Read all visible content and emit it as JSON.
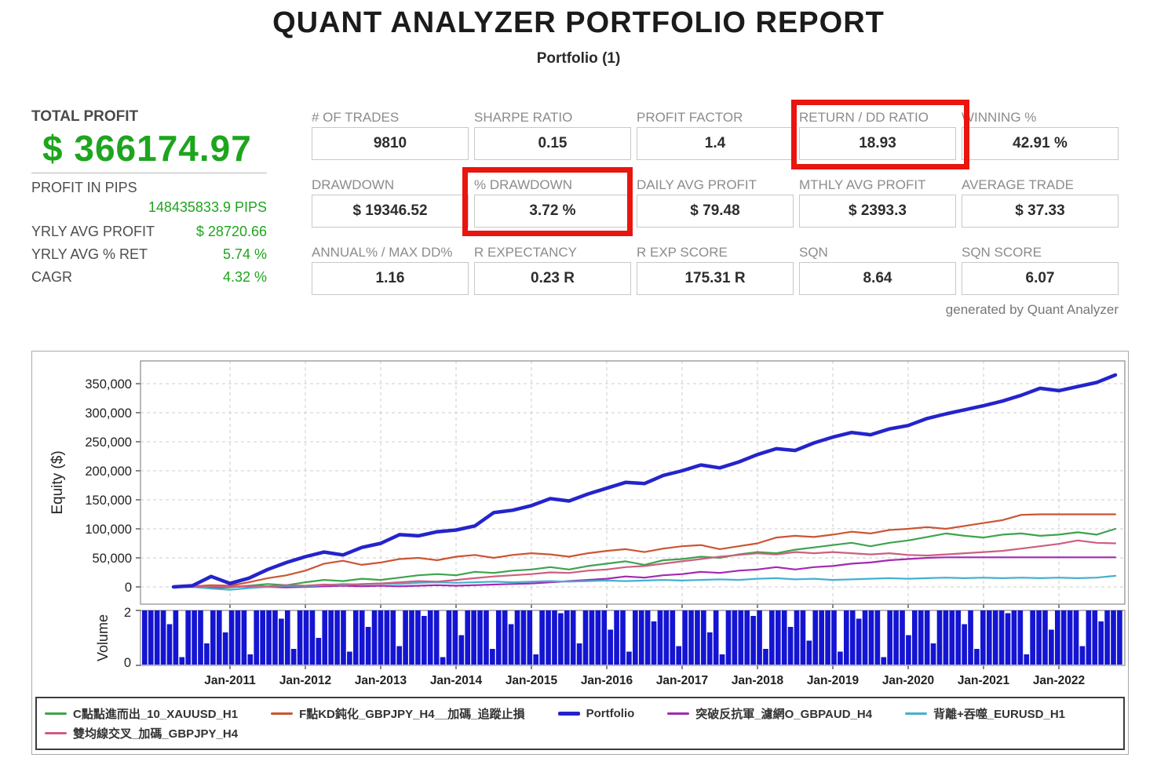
{
  "header": {
    "title": "QUANT ANALYZER PORTFOLIO REPORT",
    "subtitle": "Portfolio (1)"
  },
  "summary": {
    "total_profit_label": "TOTAL PROFIT",
    "total_profit_value": "$ 366174.97",
    "profit_in_pips_label": "PROFIT IN PIPS",
    "profit_in_pips_value": "148435833.9 PIPS",
    "rows": [
      {
        "label": "YRLY AVG PROFIT",
        "value": "$ 28720.66"
      },
      {
        "label": "YRLY AVG % RET",
        "value": "5.74 %"
      },
      {
        "label": "CAGR",
        "value": "4.32 %"
      }
    ]
  },
  "stats": {
    "rows": [
      [
        {
          "label": "# OF TRADES",
          "value": "9810"
        },
        {
          "label": "SHARPE RATIO",
          "value": "0.15"
        },
        {
          "label": "PROFIT FACTOR",
          "value": "1.4"
        },
        {
          "label": "RETURN / DD RATIO",
          "value": "18.93",
          "highlight": true
        },
        {
          "label": "WINNING %",
          "value": "42.91 %"
        }
      ],
      [
        {
          "label": "DRAWDOWN",
          "value": "$ 19346.52"
        },
        {
          "label": "% DRAWDOWN",
          "value": "3.72 %",
          "highlight": true
        },
        {
          "label": "DAILY AVG PROFIT",
          "value": "$ 79.48"
        },
        {
          "label": "MTHLY AVG PROFIT",
          "value": "$ 2393.3"
        },
        {
          "label": "AVERAGE TRADE",
          "value": "$ 37.33"
        }
      ],
      [
        {
          "label": "ANNUAL% / MAX DD%",
          "value": "1.16"
        },
        {
          "label": "R EXPECTANCY",
          "value": "0.23 R"
        },
        {
          "label": "R EXP SCORE",
          "value": "175.31 R"
        },
        {
          "label": "SQN",
          "value": "8.64"
        },
        {
          "label": "SQN SCORE",
          "value": "6.07"
        }
      ]
    ]
  },
  "footer_note": "generated by Quant Analyzer",
  "colors": {
    "profit_green": "#1ea51e",
    "highlight_red": "#e9150f",
    "grid_label_gray": "#8c8c8c",
    "volume_blue": "#1414d2"
  },
  "chart_data": {
    "type": "line",
    "ylabel": "Equity ($)",
    "volume_ylabel": "Volume",
    "x_unit": "year",
    "x_start": 2010.25,
    "x_step": 0.25,
    "x_tick_labels": [
      "Jan-2011",
      "Jan-2012",
      "Jan-2013",
      "Jan-2014",
      "Jan-2015",
      "Jan-2016",
      "Jan-2017",
      "Jan-2018",
      "Jan-2019",
      "Jan-2020",
      "Jan-2021",
      "Jan-2022"
    ],
    "x_tick_years": [
      2011,
      2012,
      2013,
      2014,
      2015,
      2016,
      2017,
      2018,
      2019,
      2020,
      2021,
      2022
    ],
    "ylim": [
      0,
      350000
    ],
    "y_ticks": [
      0,
      50000,
      100000,
      150000,
      200000,
      250000,
      300000,
      350000
    ],
    "y_tick_labels": [
      "0",
      "50,000",
      "100,000",
      "150,000",
      "200,000",
      "250,000",
      "300,000",
      "350,000"
    ],
    "grid": "dashed",
    "legend_position": "bottom",
    "legend_rows": [
      [
        0,
        1,
        2,
        3,
        4
      ],
      [
        5
      ]
    ],
    "draw_order": [
      0,
      1,
      3,
      4,
      5,
      2
    ],
    "series": [
      {
        "name": "C點點進而出_10_XAUUSD_H1",
        "color": "#3fa34c",
        "width": 2.2,
        "values": [
          0,
          0,
          -2000,
          -1000,
          2000,
          5000,
          3000,
          8000,
          12000,
          10000,
          14000,
          12000,
          16000,
          20000,
          22000,
          20000,
          26000,
          24000,
          28000,
          30000,
          34000,
          30000,
          36000,
          40000,
          44000,
          38000,
          46000,
          48000,
          52000,
          50000,
          56000,
          60000,
          58000,
          64000,
          68000,
          72000,
          76000,
          70000,
          76000,
          80000,
          86000,
          92000,
          88000,
          85000,
          90000,
          92000,
          88000,
          90000,
          94000,
          90000,
          100000
        ]
      },
      {
        "name": "F點KD鈍化_GBPJPY_H4__加碼_追蹤止損",
        "color": "#cc5533",
        "width": 2.2,
        "values": [
          0,
          1000,
          3000,
          2000,
          8000,
          15000,
          20000,
          28000,
          40000,
          45000,
          38000,
          42000,
          48000,
          50000,
          46000,
          52000,
          55000,
          50000,
          55000,
          58000,
          56000,
          52000,
          58000,
          62000,
          65000,
          60000,
          66000,
          70000,
          72000,
          65000,
          70000,
          75000,
          85000,
          88000,
          86000,
          90000,
          95000,
          92000,
          98000,
          100000,
          103000,
          100000,
          105000,
          110000,
          115000,
          124000,
          125000,
          125000,
          125000,
          125000,
          125000
        ]
      },
      {
        "name": "Portfolio",
        "color": "#2424cc",
        "width": 4.5,
        "values": [
          0,
          2000,
          18000,
          6000,
          15000,
          30000,
          42000,
          52000,
          60000,
          55000,
          68000,
          75000,
          90000,
          88000,
          95000,
          98000,
          105000,
          128000,
          132000,
          140000,
          152000,
          148000,
          160000,
          170000,
          180000,
          178000,
          192000,
          200000,
          210000,
          205000,
          215000,
          228000,
          238000,
          235000,
          248000,
          258000,
          266000,
          262000,
          272000,
          278000,
          290000,
          298000,
          305000,
          312000,
          320000,
          330000,
          342000,
          338000,
          345000,
          352000,
          365000
        ]
      },
      {
        "name": "突破反抗軍_濾網O_GBPAUD_H4",
        "color": "#a22ab0",
        "width": 2.2,
        "values": [
          0,
          0,
          -1000,
          0,
          1000,
          0,
          -1000,
          0,
          1000,
          2000,
          1000,
          2000,
          1000,
          2000,
          3000,
          2000,
          3000,
          4000,
          5000,
          6000,
          8000,
          10000,
          12000,
          14000,
          18000,
          16000,
          20000,
          22000,
          26000,
          24000,
          28000,
          30000,
          34000,
          30000,
          34000,
          36000,
          40000,
          42000,
          46000,
          48000,
          50000,
          51000,
          51000,
          51000,
          51000,
          51000,
          51000,
          51000,
          51000,
          51000,
          51000
        ]
      },
      {
        "name": "背離+吞噬_EURUSD_H1",
        "color": "#44b0cf",
        "width": 2.2,
        "values": [
          0,
          0,
          -3000,
          -5000,
          -2000,
          0,
          2000,
          1000,
          3000,
          5000,
          4000,
          6000,
          5000,
          7000,
          8000,
          7000,
          8000,
          9000,
          8000,
          9000,
          10000,
          9000,
          10000,
          11000,
          10000,
          11000,
          12000,
          11000,
          12000,
          13000,
          12000,
          14000,
          15000,
          13000,
          14000,
          12000,
          13000,
          14000,
          15000,
          14000,
          15000,
          16000,
          15000,
          16000,
          15000,
          16000,
          15000,
          16000,
          15000,
          16000,
          19000
        ]
      },
      {
        "name": "雙均線交叉_加碼_GBPJPY_H4",
        "color": "#cc5f80",
        "width": 2.2,
        "values": [
          0,
          0,
          1000,
          0,
          2000,
          1000,
          3000,
          2000,
          4000,
          3000,
          5000,
          6000,
          8000,
          10000,
          9000,
          12000,
          15000,
          18000,
          20000,
          22000,
          25000,
          24000,
          28000,
          30000,
          34000,
          36000,
          40000,
          44000,
          48000,
          52000,
          55000,
          58000,
          56000,
          60000,
          58000,
          60000,
          58000,
          56000,
          58000,
          55000,
          54000,
          56000,
          58000,
          60000,
          62000,
          66000,
          70000,
          74000,
          80000,
          76000,
          75000
        ]
      }
    ],
    "volume": {
      "ylim": [
        0,
        2
      ],
      "y_ticks": [
        0,
        2
      ],
      "color": "#1414d2",
      "values": [
        2,
        2,
        2,
        2,
        1.5,
        2,
        0.3,
        2,
        2,
        2,
        0.8,
        2,
        2,
        1.2,
        2,
        2,
        2,
        0.4,
        2,
        2,
        2,
        2,
        1.7,
        2,
        0.6,
        2,
        2,
        2,
        1,
        2,
        2,
        2,
        2,
        0.5,
        2,
        2,
        1.4,
        2,
        2,
        2,
        2,
        0.7,
        2,
        2,
        2,
        1.8,
        2,
        2,
        0.3,
        2,
        2,
        1.1,
        2,
        2,
        2,
        2,
        0.6,
        2,
        2,
        1.5,
        2,
        2,
        2,
        0.4,
        2,
        2,
        2,
        1.9,
        2,
        2,
        0.8,
        2,
        2,
        2,
        2,
        1.3,
        2,
        2,
        0.5,
        2,
        2,
        2,
        1.6,
        2,
        2,
        2,
        0.7,
        2,
        2,
        2,
        2,
        1.2,
        2,
        0.4,
        2,
        2,
        2,
        2,
        1.8,
        2,
        0.6,
        2,
        2,
        2,
        1.4,
        2,
        2,
        0.9,
        2,
        2,
        2,
        2,
        0.5,
        2,
        2,
        1.7,
        2,
        2,
        2,
        0.3,
        2,
        2,
        2,
        1.1,
        2,
        2,
        2,
        0.8,
        2,
        2,
        2,
        2,
        1.5,
        2,
        0.6,
        2,
        2,
        2,
        2,
        1.9,
        2,
        2,
        0.4,
        2,
        2,
        2,
        1.3,
        2,
        2,
        2,
        2,
        0.7,
        2,
        2,
        1.6,
        2,
        2,
        2
      ]
    }
  }
}
